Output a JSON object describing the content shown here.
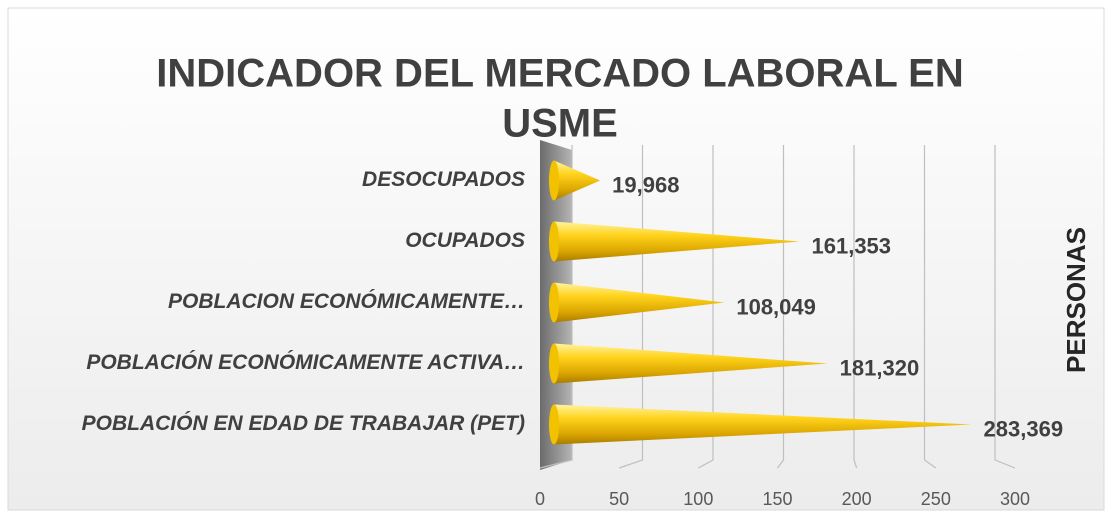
{
  "chart_data": {
    "type": "cone-bar",
    "title": "INDICADOR DEL MERCADO LABORAL EN USME",
    "axis_title": "PERSONAS",
    "categories": [
      "POBLACIÓN EN EDAD DE TRABAJAR  (PET)",
      "POBLACIÓN ECONÓMICAMENTE ACTIVA…",
      "POBLACION ECONÓMICAMENTE…",
      "OCUPADOS",
      "DESOCUPADOS"
    ],
    "values": [
      283.369,
      181.32,
      108.049,
      161.353,
      19.968
    ],
    "value_labels": [
      "283,369",
      "181,320",
      "108,049",
      "161,353",
      "19,968"
    ],
    "color": "#f2c200",
    "xlim": [
      0,
      300
    ],
    "xticks": [
      0,
      50,
      100,
      150,
      200,
      250,
      300
    ],
    "grid": true
  }
}
